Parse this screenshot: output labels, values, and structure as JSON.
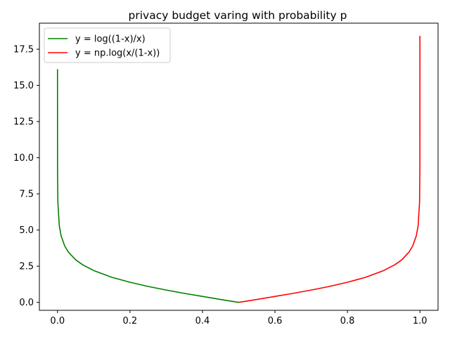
{
  "chart_data": {
    "type": "line",
    "title": "privacy budget varing with probability p",
    "xlabel": "",
    "ylabel": "",
    "xlim": [
      -0.05,
      1.05
    ],
    "ylim": [
      -0.55,
      19.3
    ],
    "x_ticks": [
      0.0,
      0.2,
      0.4,
      0.6,
      0.8,
      1.0
    ],
    "x_tick_labels": [
      "0.0",
      "0.2",
      "0.4",
      "0.6",
      "0.8",
      "1.0"
    ],
    "y_ticks": [
      0.0,
      2.5,
      5.0,
      7.5,
      10.0,
      12.5,
      15.0,
      17.5
    ],
    "y_tick_labels": [
      "0.0",
      "2.5",
      "5.0",
      "7.5",
      "10.0",
      "12.5",
      "15.0",
      "17.5"
    ],
    "grid": false,
    "legend_position": "top-left",
    "series": [
      {
        "name": "y = log((1-x)/x)",
        "color": "#008000",
        "x": [
          1e-07,
          0.0001,
          0.001,
          0.005,
          0.01,
          0.02,
          0.03,
          0.05,
          0.07,
          0.1,
          0.15,
          0.2,
          0.25,
          0.3,
          0.35,
          0.4,
          0.45,
          0.5
        ],
        "y": [
          16.12,
          9.21,
          6.91,
          5.29,
          4.6,
          3.89,
          3.48,
          2.94,
          2.59,
          2.2,
          1.73,
          1.39,
          1.1,
          0.85,
          0.62,
          0.41,
          0.2,
          0.0
        ]
      },
      {
        "name": "y = np.log(x/(1-x))",
        "color": "#ff0000",
        "x": [
          0.5,
          0.55,
          0.6,
          0.65,
          0.7,
          0.75,
          0.8,
          0.85,
          0.9,
          0.93,
          0.95,
          0.97,
          0.98,
          0.99,
          0.995,
          0.999,
          0.9999,
          0.99999999
        ],
        "y": [
          0.0,
          0.2,
          0.41,
          0.62,
          0.85,
          1.1,
          1.39,
          1.73,
          2.2,
          2.59,
          2.94,
          3.48,
          3.89,
          4.6,
          5.29,
          6.91,
          9.21,
          18.42
        ]
      }
    ]
  }
}
